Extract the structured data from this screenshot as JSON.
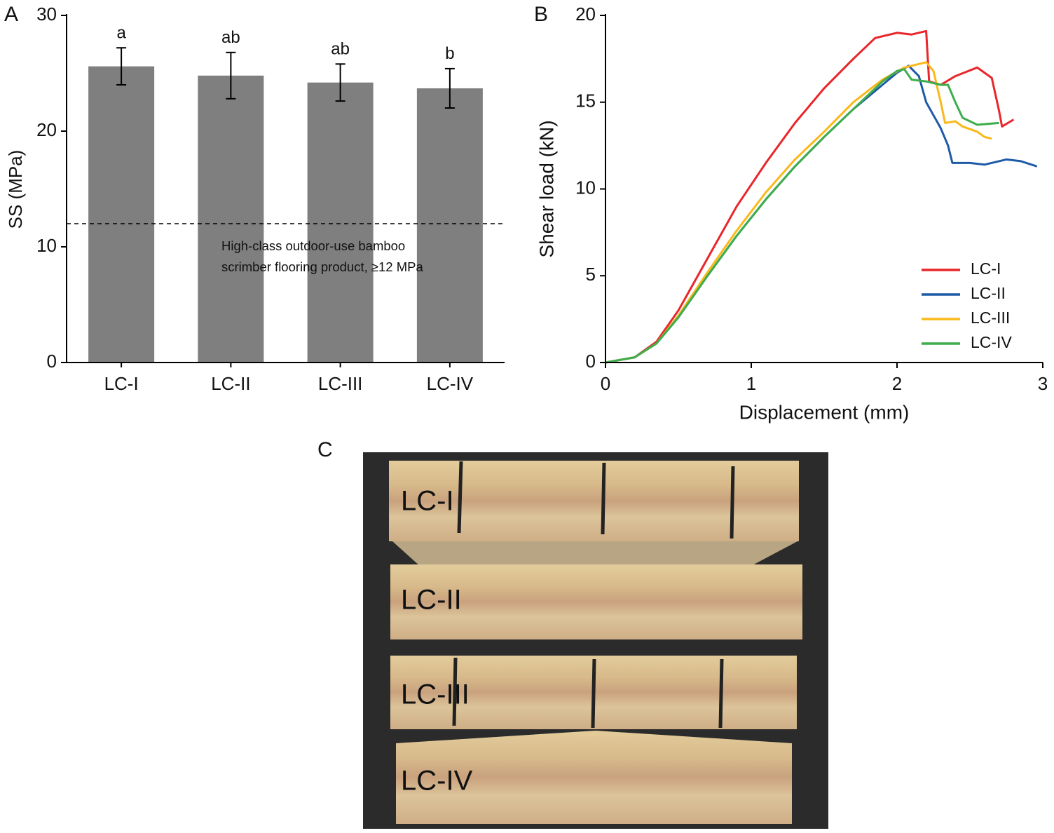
{
  "chart_data": [
    {
      "type": "bar",
      "panel_label": "A",
      "y_label": "SS (MPa)",
      "categories": [
        "LC-I",
        "LC-II",
        "LC-III",
        "LC-IV"
      ],
      "values": [
        25.6,
        24.8,
        24.2,
        23.7
      ],
      "errors": [
        1.6,
        2.0,
        1.6,
        1.7
      ],
      "sig_labels": [
        "a",
        "ab",
        "ab",
        "b"
      ],
      "color": "#7f7f7f",
      "ylim": [
        0,
        30
      ],
      "yticks": [
        0,
        10,
        20,
        30
      ],
      "reference_line": 12,
      "annotation": [
        "High-class outdoor-use bamboo",
        "scrimber flooring product, ≥12 MPa"
      ]
    },
    {
      "type": "line",
      "panel_label": "B",
      "x_label": "Displacement (mm)",
      "y_label": "Shear load (kN)",
      "xlim": [
        0,
        3
      ],
      "ylim": [
        0,
        20
      ],
      "xticks": [
        0,
        1,
        2,
        3
      ],
      "yticks": [
        0,
        5,
        10,
        15,
        20
      ],
      "legend": "lower right",
      "series": [
        {
          "name": "LC-I",
          "color": "#e8262b",
          "x": [
            0,
            0.2,
            0.35,
            0.5,
            0.7,
            0.9,
            1.1,
            1.3,
            1.5,
            1.7,
            1.85,
            2.0,
            2.1,
            2.2,
            2.22,
            2.3,
            2.4,
            2.55,
            2.65,
            2.7,
            2.72,
            2.8
          ],
          "values": [
            0,
            0.3,
            1.2,
            3,
            6,
            9,
            11.5,
            13.8,
            15.8,
            17.5,
            18.7,
            19.0,
            18.9,
            19.1,
            16.2,
            16.0,
            16.5,
            17.0,
            16.4,
            14.5,
            13.6,
            14.0
          ]
        },
        {
          "name": "LC-II",
          "color": "#1f5aa6",
          "x": [
            0,
            0.2,
            0.35,
            0.5,
            0.7,
            0.9,
            1.1,
            1.3,
            1.5,
            1.7,
            1.9,
            2.0,
            2.08,
            2.15,
            2.2,
            2.3,
            2.35,
            2.38,
            2.5,
            2.6,
            2.75,
            2.85,
            2.96
          ],
          "values": [
            0,
            0.3,
            1.1,
            2.6,
            5,
            7.3,
            9.4,
            11.3,
            13,
            14.6,
            16,
            16.7,
            17.1,
            16.5,
            15,
            13.5,
            12.5,
            11.5,
            11.5,
            11.4,
            11.7,
            11.6,
            11.3
          ]
        },
        {
          "name": "LC-III",
          "color": "#fbb81a",
          "x": [
            0,
            0.2,
            0.35,
            0.5,
            0.7,
            0.9,
            1.1,
            1.3,
            1.5,
            1.7,
            1.9,
            2.05,
            2.2,
            2.25,
            2.3,
            2.33,
            2.4,
            2.45,
            2.55,
            2.6,
            2.65
          ],
          "values": [
            0,
            0.3,
            1.1,
            2.7,
            5.2,
            7.6,
            9.8,
            11.7,
            13.3,
            15,
            16.3,
            17.0,
            17.3,
            16.8,
            15,
            13.8,
            13.9,
            13.6,
            13.3,
            13.0,
            12.9
          ]
        },
        {
          "name": "LC-IV",
          "color": "#3dae4b",
          "x": [
            0,
            0.2,
            0.35,
            0.5,
            0.7,
            0.9,
            1.1,
            1.3,
            1.5,
            1.7,
            1.9,
            2.0,
            2.05,
            2.1,
            2.2,
            2.3,
            2.35,
            2.4,
            2.45,
            2.55,
            2.7
          ],
          "values": [
            0,
            0.3,
            1.1,
            2.6,
            5,
            7.3,
            9.4,
            11.3,
            13,
            14.6,
            16.2,
            16.8,
            16.9,
            16.3,
            16.2,
            16.0,
            16.0,
            15,
            14.1,
            13.7,
            13.8
          ]
        }
      ]
    }
  ],
  "photo": {
    "panel_label": "C",
    "labels": [
      "LC-I",
      "LC-II",
      "LC-III",
      "LC-IV"
    ]
  }
}
